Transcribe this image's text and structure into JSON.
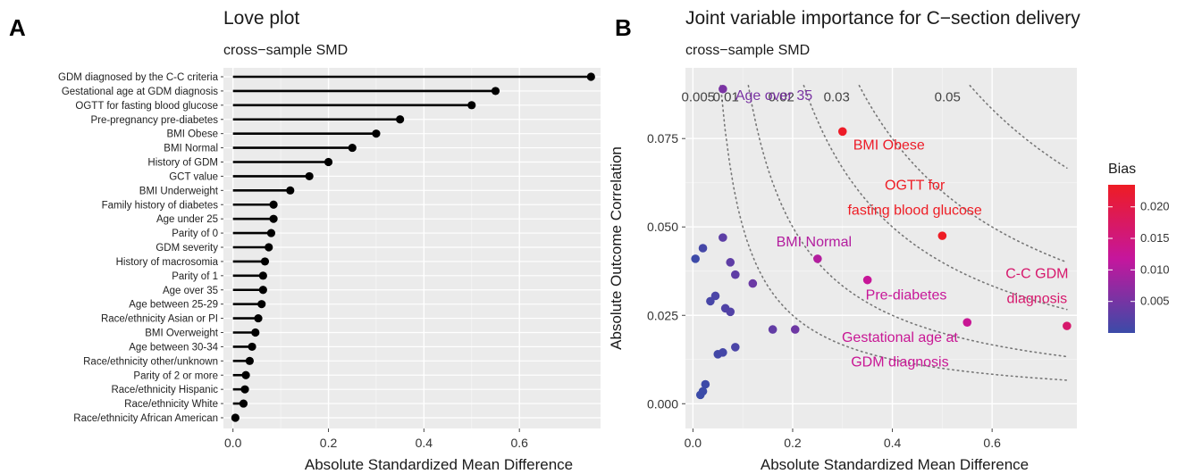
{
  "panel_a": {
    "letter": "A",
    "title": "Love plot",
    "subtitle": "cross−sample SMD"
  },
  "panel_b": {
    "letter": "B",
    "title": "Joint variable importance for C−section delivery",
    "subtitle": "cross−sample SMD"
  },
  "chart_data": [
    {
      "type": "lollipop",
      "xlabel": "Absolute Standardized Mean Difference",
      "ylabel": "",
      "xlim": [
        -0.02,
        0.77
      ],
      "xticks": [
        0.0,
        0.2,
        0.4,
        0.6
      ],
      "xtick_labels": [
        "0.0",
        "0.2",
        "0.4",
        "0.6"
      ],
      "grid": true,
      "categories": [
        "GDM diagnosed by the C-C criteria",
        "Gestational age at GDM diagnosis",
        "OGTT for fasting blood glucose",
        "Pre-pregnancy pre-diabetes",
        "BMI Obese",
        "BMI Normal",
        "History of GDM",
        "GCT value",
        "BMI Underweight",
        "Family history of diabetes",
        "Age under 25",
        "Parity of 0",
        "GDM severity",
        "History of macrosomia",
        "Parity of 1",
        "Age over 35",
        "Age between 25-29",
        "Race/ethnicity Asian or PI",
        "BMI Overweight",
        "Age between 30-34",
        "Race/ethnicity other/unknown",
        "Parity of 2 or more",
        "Race/ethnicity Hispanic",
        "Race/ethnicity White",
        "Race/ethnicity African American"
      ],
      "values": [
        0.75,
        0.55,
        0.5,
        0.35,
        0.3,
        0.25,
        0.2,
        0.16,
        0.12,
        0.085,
        0.085,
        0.08,
        0.075,
        0.067,
        0.063,
        0.063,
        0.06,
        0.053,
        0.047,
        0.04,
        0.035,
        0.027,
        0.025,
        0.022,
        0.005
      ]
    },
    {
      "type": "scatter",
      "xlabel": "Absolute Standardized Mean Difference",
      "ylabel": "Absolute Outcome Correlation",
      "xlim": [
        -0.015,
        0.77
      ],
      "ylim": [
        -0.007,
        0.095
      ],
      "xticks": [
        0.0,
        0.2,
        0.4,
        0.6
      ],
      "xtick_labels": [
        "0.0",
        "0.2",
        "0.4",
        "0.6"
      ],
      "yticks": [
        0.0,
        0.025,
        0.05,
        0.075
      ],
      "ytick_labels": [
        "0.000",
        "0.025",
        "0.050",
        "0.075"
      ],
      "grid": true,
      "color_scale": {
        "title": "Bias",
        "low_color": "#3b4ba8",
        "mid_color": "#c5169d",
        "high_color": "#ee1c24",
        "range": [
          0.0,
          0.0235
        ],
        "ticks": [
          0.005,
          0.01,
          0.015,
          0.02
        ],
        "tick_labels": [
          "0.005",
          "0.010",
          "0.015",
          "0.020"
        ]
      },
      "bias_contours": [
        {
          "label": "0.005",
          "value": 0.005
        },
        {
          "label": "0.01",
          "value": 0.01
        },
        {
          "label": "0.02",
          "value": 0.02
        },
        {
          "label": "0.03",
          "value": 0.03
        },
        {
          "label": "0.05",
          "value": 0.05
        }
      ],
      "points": [
        {
          "x": 0.06,
          "y": 0.089,
          "label": "Age over 35"
        },
        {
          "x": 0.3,
          "y": 0.077,
          "label": "BMI Obese"
        },
        {
          "x": 0.5,
          "y": 0.0475,
          "label": "OGTT for fasting blood glucose"
        },
        {
          "x": 0.25,
          "y": 0.041,
          "label": "BMI Normal"
        },
        {
          "x": 0.35,
          "y": 0.035,
          "label": "Pre-diabetes"
        },
        {
          "x": 0.75,
          "y": 0.022,
          "label": "C-C GDM diagnosis"
        },
        {
          "x": 0.55,
          "y": 0.023,
          "label": "Gestational age at GDM diagnosis"
        },
        {
          "x": 0.06,
          "y": 0.047,
          "label": ""
        },
        {
          "x": 0.02,
          "y": 0.044,
          "label": ""
        },
        {
          "x": 0.005,
          "y": 0.041,
          "label": ""
        },
        {
          "x": 0.075,
          "y": 0.04,
          "label": ""
        },
        {
          "x": 0.085,
          "y": 0.0365,
          "label": ""
        },
        {
          "x": 0.12,
          "y": 0.034,
          "label": ""
        },
        {
          "x": 0.045,
          "y": 0.0305,
          "label": ""
        },
        {
          "x": 0.035,
          "y": 0.029,
          "label": ""
        },
        {
          "x": 0.065,
          "y": 0.027,
          "label": ""
        },
        {
          "x": 0.075,
          "y": 0.026,
          "label": ""
        },
        {
          "x": 0.16,
          "y": 0.021,
          "label": ""
        },
        {
          "x": 0.205,
          "y": 0.021,
          "label": ""
        },
        {
          "x": 0.085,
          "y": 0.016,
          "label": ""
        },
        {
          "x": 0.05,
          "y": 0.014,
          "label": ""
        },
        {
          "x": 0.06,
          "y": 0.0145,
          "label": ""
        },
        {
          "x": 0.025,
          "y": 0.0055,
          "label": ""
        },
        {
          "x": 0.02,
          "y": 0.0035,
          "label": ""
        },
        {
          "x": 0.015,
          "y": 0.0025,
          "label": ""
        }
      ]
    }
  ]
}
